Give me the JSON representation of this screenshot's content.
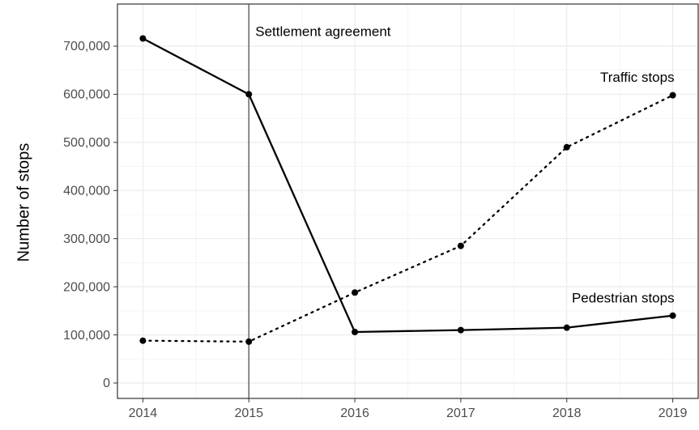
{
  "chart_data": {
    "type": "line",
    "ylabel": "Number of stops",
    "x": [
      2014,
      2015,
      2016,
      2017,
      2018,
      2019
    ],
    "series": [
      {
        "name": "Pedestrian stops",
        "color": "#000000",
        "dash": "solid",
        "values": [
          716000,
          600000,
          106000,
          110000,
          115000,
          140000
        ]
      },
      {
        "name": "Traffic stops",
        "color": "#000000",
        "dash": "dotted",
        "values": [
          88000,
          86000,
          188000,
          285000,
          490000,
          598000
        ]
      }
    ],
    "vline": 2015,
    "vline_label": "Settlement agreement",
    "xlim": [
      2013.76,
      2019.24
    ],
    "xticks": [
      2014,
      2015,
      2016,
      2017,
      2018,
      2019
    ],
    "ylim": [
      -32000,
      787500
    ],
    "yticks": [
      0,
      {
        "value": 100000,
        "label": "100,000"
      },
      {
        "value": 200000,
        "label": "200,000"
      },
      {
        "value": 300000,
        "label": "300,000"
      },
      {
        "value": 400000,
        "label": "400,000"
      },
      {
        "value": 500000,
        "label": "500,000"
      },
      {
        "value": 600000,
        "label": "600,000"
      },
      {
        "value": 700000,
        "label": "700,000"
      }
    ],
    "grid": true
  }
}
